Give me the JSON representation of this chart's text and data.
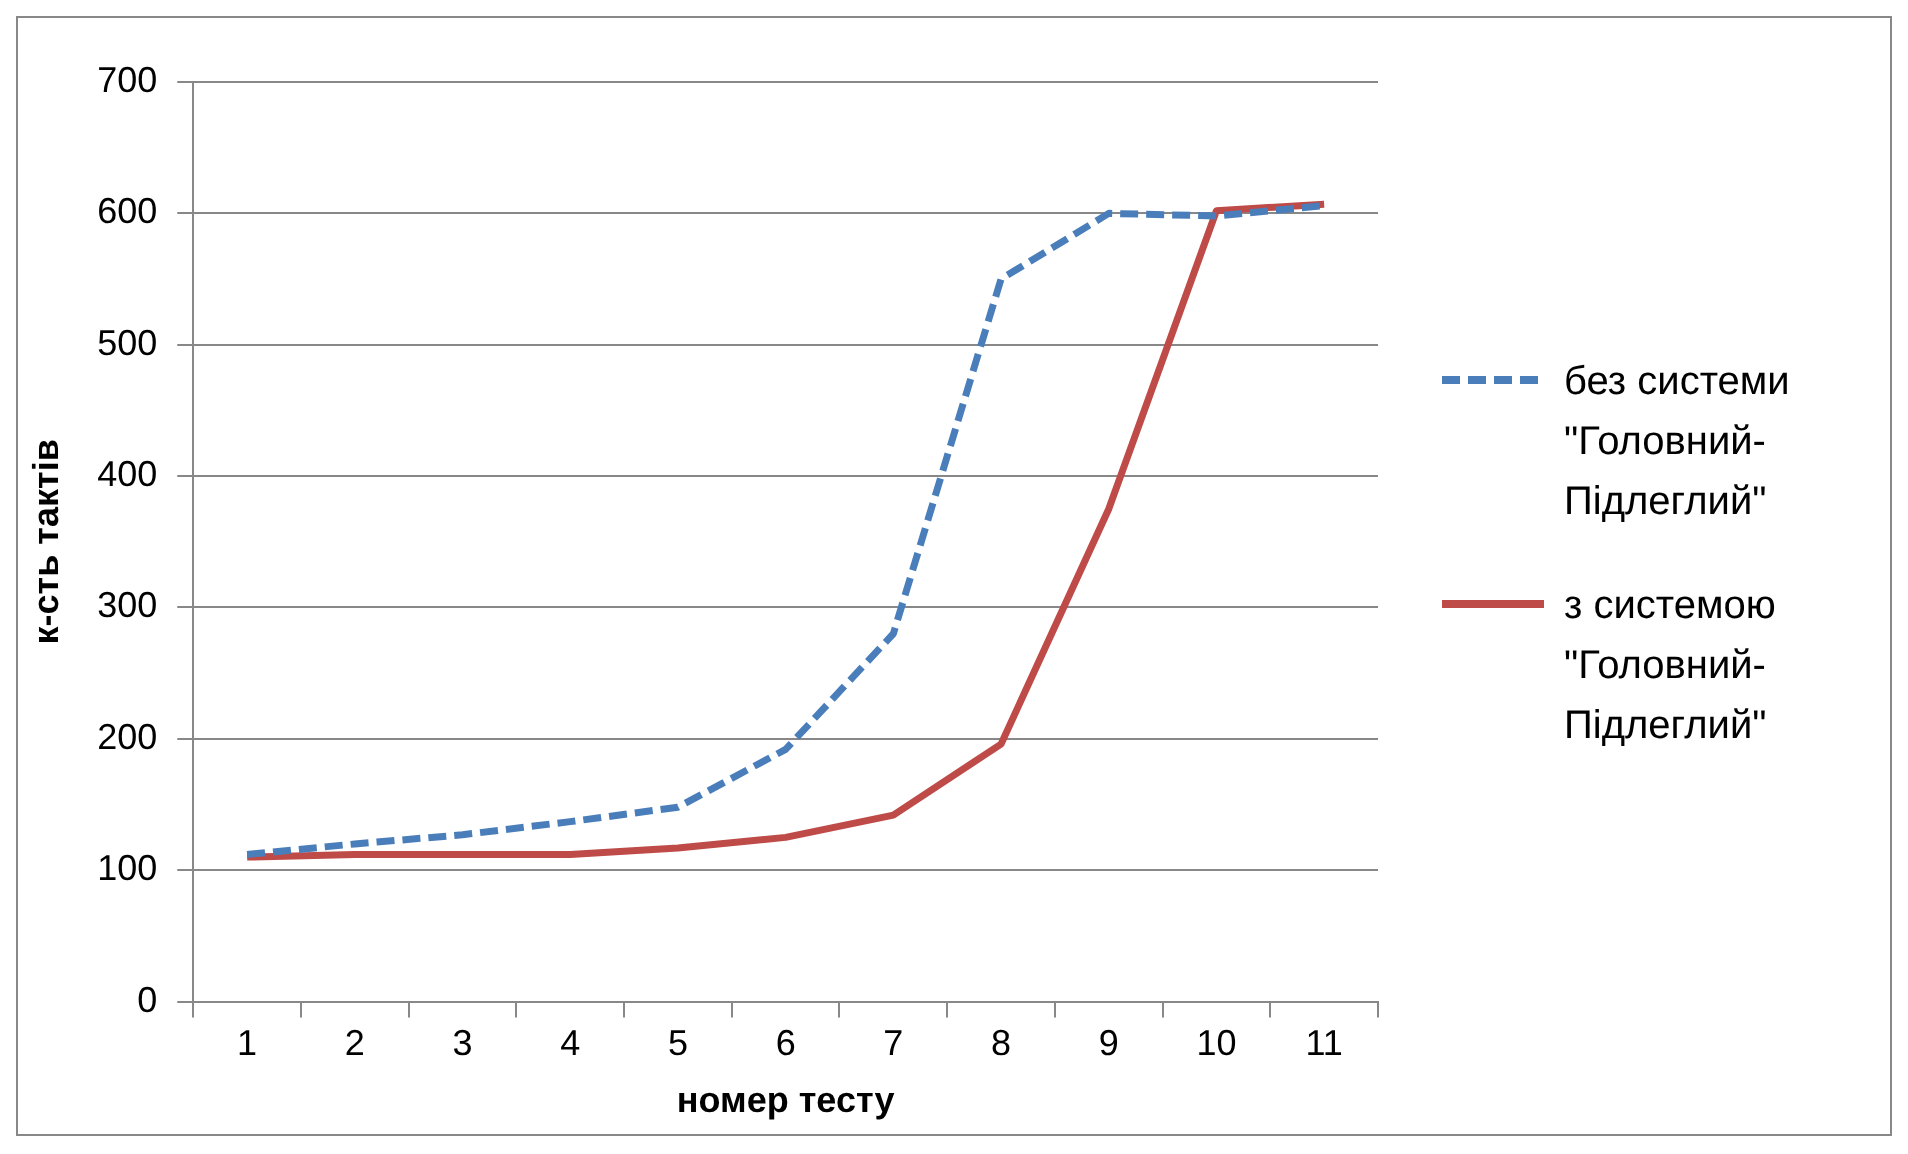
{
  "chart_data": {
    "type": "line",
    "xlabel": "номер тесту",
    "ylabel": "к-сть тактів",
    "categories": [
      "1",
      "2",
      "3",
      "4",
      "5",
      "6",
      "7",
      "8",
      "9",
      "10",
      "11"
    ],
    "series": [
      {
        "name": "без системи \"Головний-Підлеглий\"",
        "color": "#4a7ebb",
        "line_style": "dashed",
        "values": [
          112,
          120,
          127,
          137,
          148,
          192,
          280,
          550,
          600,
          598,
          606
        ]
      },
      {
        "name": "з системою \"Головний-Підлеглий\"",
        "color": "#be4b48",
        "line_style": "solid",
        "values": [
          110,
          112,
          112,
          112,
          117,
          125,
          142,
          196,
          375,
          602,
          607
        ]
      }
    ],
    "ylim": [
      0,
      700
    ],
    "yticks": [
      0,
      100,
      200,
      300,
      400,
      500,
      600,
      700
    ],
    "grid": "y",
    "legend": "right",
    "marker": "none"
  }
}
